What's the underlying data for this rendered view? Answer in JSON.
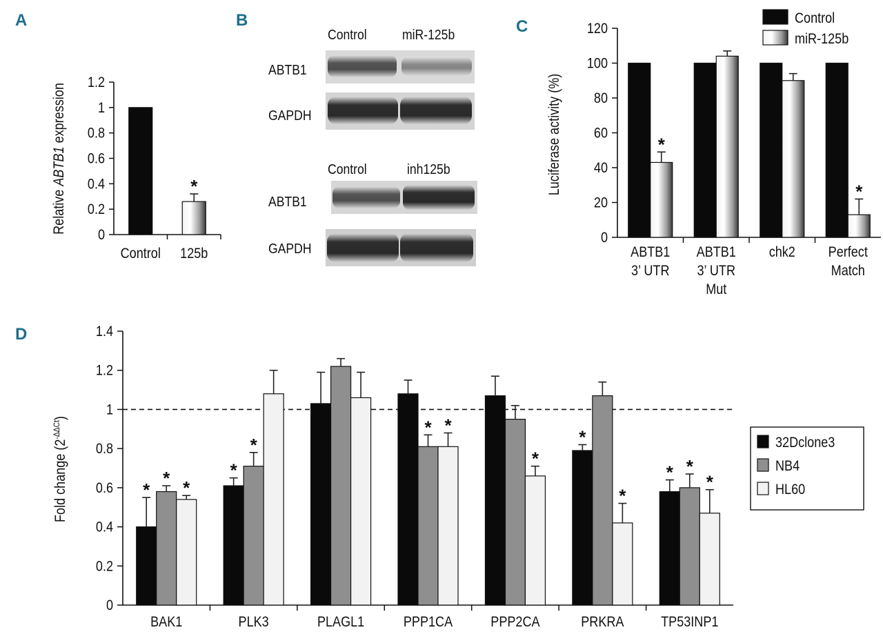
{
  "panels": {
    "a": "A",
    "b": "B",
    "c": "C",
    "d": "D"
  },
  "western_blot": {
    "top": {
      "col_labels": [
        "Control",
        "miR-125b"
      ],
      "row_labels": [
        "ABTB1",
        "GAPDH"
      ]
    },
    "bottom": {
      "col_labels": [
        "Control",
        "inh125b"
      ],
      "row_labels": [
        "ABTB1",
        "GAPDH"
      ]
    }
  },
  "colors": {
    "control_bar": "#0a0a0a",
    "series_32Dclone3": "#0a0a0a",
    "series_NB4": "#8f8f8f",
    "series_HL60": "#f2f2f2"
  },
  "chart_data": [
    {
      "id": "A",
      "type": "bar",
      "title": "",
      "ylabel_prefix": "Relative ",
      "ylabel_italic": "ABTB1",
      "ylabel_suffix": " expression",
      "xlabel": "",
      "categories": [
        "Control",
        "125b"
      ],
      "values": [
        1.0,
        0.26
      ],
      "errors": [
        0,
        0.06
      ],
      "significant": [
        false,
        true
      ],
      "marker": "*",
      "ylim": [
        0,
        1.2
      ],
      "yticks": [
        0,
        0.2,
        0.4,
        0.6,
        0.8,
        1,
        1.2
      ],
      "ytick_labels": [
        "0",
        "0.2",
        "0.4",
        "0.6",
        "0.8",
        "1",
        "1.2"
      ]
    },
    {
      "id": "C",
      "type": "bar",
      "title": "",
      "ylabel": "Luciferase activity (%)",
      "xlabel": "",
      "categories": [
        [
          "ABTB1",
          "3’ UTR"
        ],
        [
          "ABTB1",
          "3’ UTR",
          "Mut"
        ],
        [
          "chk2"
        ],
        [
          "Perfect",
          "Match"
        ]
      ],
      "series": [
        {
          "name": "Control",
          "values": [
            100,
            100,
            100,
            100
          ],
          "errors": [
            0,
            0,
            0,
            0
          ],
          "significant": [
            false,
            false,
            false,
            false
          ]
        },
        {
          "name": "miR-125b",
          "values": [
            43,
            104,
            90,
            13
          ],
          "errors": [
            6,
            3,
            4,
            9
          ],
          "significant": [
            true,
            false,
            false,
            true
          ]
        }
      ],
      "marker": "*",
      "ylim": [
        0,
        120
      ],
      "yticks": [
        0,
        20,
        40,
        60,
        80,
        100,
        120
      ],
      "ytick_labels": [
        "0",
        "20",
        "40",
        "60",
        "80",
        "100",
        "120"
      ],
      "legend_position": "top-right"
    },
    {
      "id": "D",
      "type": "bar",
      "title": "",
      "ylabel_main": "Fold change (2",
      "ylabel_sup": "-ΔΔCt",
      "ylabel_close": ")",
      "xlabel": "",
      "categories": [
        "BAK1",
        "PLK3",
        "PLAGL1",
        "PPP1CA",
        "PPP2CA",
        "PRKRA",
        "TP53INP1"
      ],
      "series": [
        {
          "name": "32Dclone3",
          "values": [
            0.4,
            0.61,
            1.03,
            1.08,
            1.07,
            0.79,
            0.58
          ],
          "errors": [
            0.15,
            0.04,
            0.16,
            0.07,
            0.1,
            0.03,
            0.06
          ],
          "significant": [
            true,
            true,
            false,
            false,
            false,
            true,
            true
          ]
        },
        {
          "name": "NB4",
          "values": [
            0.58,
            0.71,
            1.22,
            0.81,
            0.95,
            1.07,
            0.6
          ],
          "errors": [
            0.03,
            0.07,
            0.04,
            0.06,
            0.07,
            0.07,
            0.07
          ],
          "significant": [
            true,
            true,
            false,
            true,
            false,
            false,
            true
          ]
        },
        {
          "name": "HL60",
          "values": [
            0.54,
            1.08,
            1.06,
            0.81,
            0.66,
            0.42,
            0.47
          ],
          "errors": [
            0.02,
            0.12,
            0.13,
            0.07,
            0.05,
            0.1,
            0.12
          ],
          "significant": [
            true,
            false,
            false,
            true,
            true,
            true,
            true
          ]
        }
      ],
      "marker": "*",
      "reference_line": 1,
      "ylim": [
        0,
        1.4
      ],
      "yticks": [
        0,
        0.2,
        0.4,
        0.6,
        0.8,
        1,
        1.2,
        1.4
      ],
      "ytick_labels": [
        "0",
        "0.2",
        "0.4",
        "0.6",
        "0.8",
        "1",
        "1.2",
        "1.4"
      ],
      "legend_position": "right"
    }
  ]
}
